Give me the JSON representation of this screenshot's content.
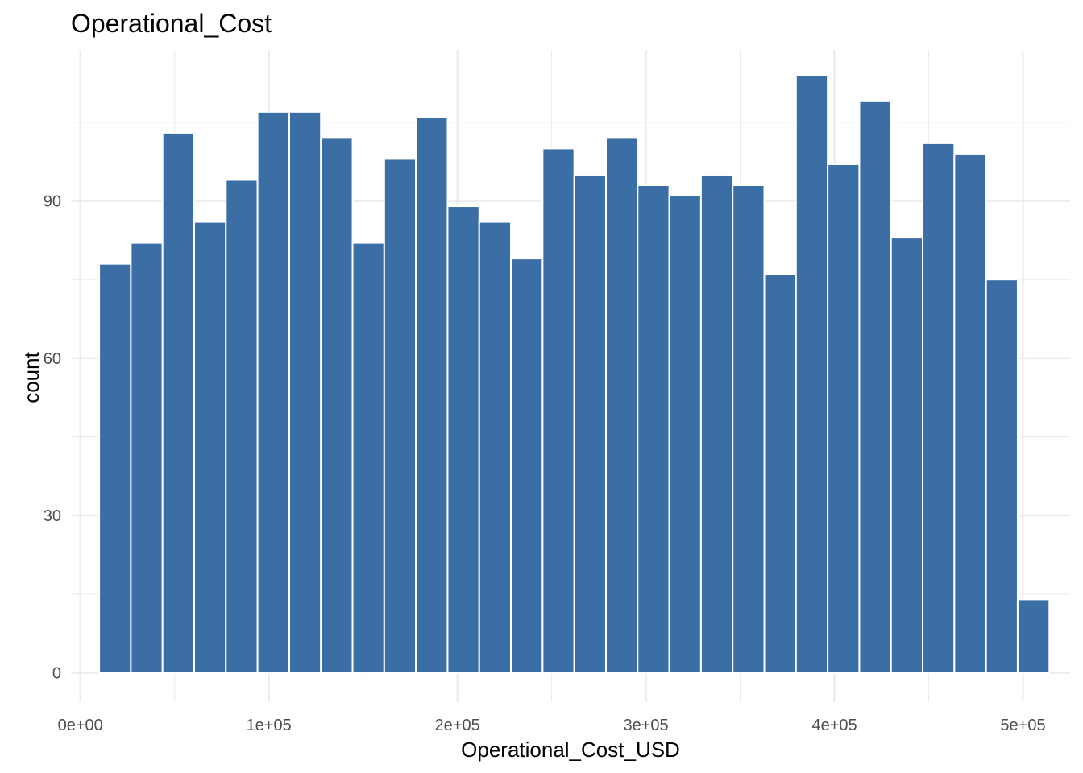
{
  "chart_data": {
    "type": "bar",
    "histogram": true,
    "title": "Operational_Cost",
    "xlabel": "Operational_Cost_USD",
    "ylabel": "count",
    "bar_color": "#3A6EA5",
    "bar_outline": "#FFFFFF",
    "grid": true,
    "legend": "none",
    "xlim": [
      -5000,
      525000
    ],
    "ylim": [
      -5.6,
      118.8
    ],
    "x_ticks": [
      {
        "value": 0,
        "label": "0e+00"
      },
      {
        "value": 100000,
        "label": "1e+05"
      },
      {
        "value": 200000,
        "label": "2e+05"
      },
      {
        "value": 300000,
        "label": "3e+05"
      },
      {
        "value": 400000,
        "label": "4e+05"
      },
      {
        "value": 500000,
        "label": "5e+05"
      }
    ],
    "x_minor_ticks": [
      50000,
      150000,
      250000,
      350000,
      450000
    ],
    "y_ticks": [
      {
        "value": 0,
        "label": "0"
      },
      {
        "value": 30,
        "label": "30"
      },
      {
        "value": 60,
        "label": "60"
      },
      {
        "value": 90,
        "label": "90"
      }
    ],
    "y_minor_ticks": [
      15,
      45,
      75,
      105
    ],
    "bins": [
      {
        "x0": 10000,
        "x1": 26800,
        "count": 78
      },
      {
        "x0": 26800,
        "x1": 43600,
        "count": 82
      },
      {
        "x0": 43600,
        "x1": 60400,
        "count": 103
      },
      {
        "x0": 60400,
        "x1": 77200,
        "count": 86
      },
      {
        "x0": 77200,
        "x1": 94000,
        "count": 94
      },
      {
        "x0": 94000,
        "x1": 110800,
        "count": 107
      },
      {
        "x0": 110800,
        "x1": 127600,
        "count": 107
      },
      {
        "x0": 127600,
        "x1": 144400,
        "count": 102
      },
      {
        "x0": 144400,
        "x1": 161200,
        "count": 82
      },
      {
        "x0": 161200,
        "x1": 178000,
        "count": 98
      },
      {
        "x0": 178000,
        "x1": 194800,
        "count": 106
      },
      {
        "x0": 194800,
        "x1": 211600,
        "count": 89
      },
      {
        "x0": 211600,
        "x1": 228400,
        "count": 86
      },
      {
        "x0": 228400,
        "x1": 245200,
        "count": 79
      },
      {
        "x0": 245200,
        "x1": 262000,
        "count": 100
      },
      {
        "x0": 262000,
        "x1": 278800,
        "count": 95
      },
      {
        "x0": 278800,
        "x1": 295600,
        "count": 102
      },
      {
        "x0": 295600,
        "x1": 312400,
        "count": 93
      },
      {
        "x0": 312400,
        "x1": 329200,
        "count": 91
      },
      {
        "x0": 329200,
        "x1": 346000,
        "count": 95
      },
      {
        "x0": 346000,
        "x1": 362800,
        "count": 93
      },
      {
        "x0": 362800,
        "x1": 379600,
        "count": 76
      },
      {
        "x0": 379600,
        "x1": 396400,
        "count": 114
      },
      {
        "x0": 396400,
        "x1": 413200,
        "count": 97
      },
      {
        "x0": 413200,
        "x1": 430000,
        "count": 109
      },
      {
        "x0": 430000,
        "x1": 446800,
        "count": 83
      },
      {
        "x0": 446800,
        "x1": 463600,
        "count": 101
      },
      {
        "x0": 463600,
        "x1": 480400,
        "count": 99
      },
      {
        "x0": 480400,
        "x1": 497200,
        "count": 75
      },
      {
        "x0": 497200,
        "x1": 514000,
        "count": 14
      }
    ]
  }
}
